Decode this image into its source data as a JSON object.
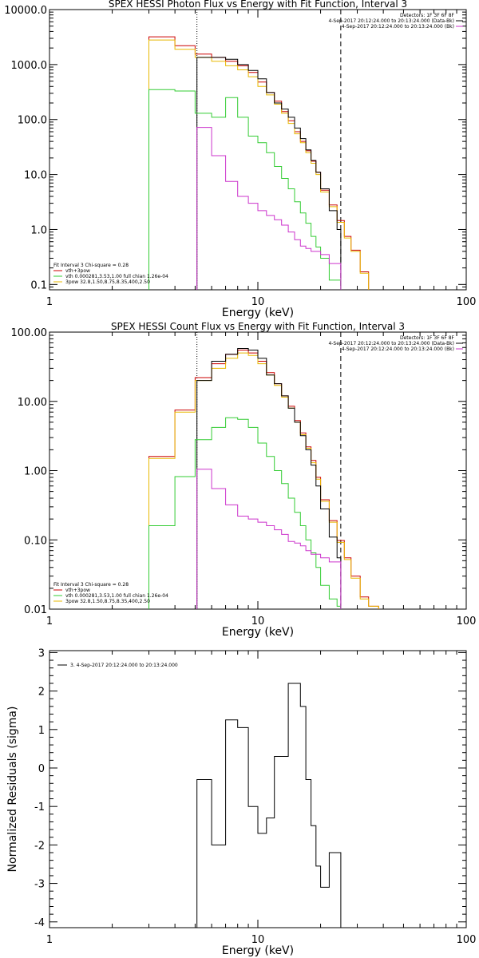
{
  "chart_data": [
    {
      "type": "line",
      "title": "SPEX HESSI Photon Flux vs Energy with Fit Function, Interval 3",
      "xlabel": "Energy (keV)",
      "ylabel": "",
      "xscale": "log",
      "yscale": "log",
      "xlim": [
        1,
        100
      ],
      "ylim": [
        0.08,
        10000
      ],
      "x_ticks": [
        "1",
        "10",
        "100"
      ],
      "y_ticks": [
        "0.1",
        "1.0",
        "10.0",
        "100.0",
        "1000.0",
        "10000.0"
      ],
      "vlines": [
        {
          "x": 5.1,
          "style": "dotted",
          "color": "#000000"
        },
        {
          "x": 25,
          "style": "dashed",
          "color": "#000000"
        }
      ],
      "legend_top": [
        {
          "text": "Detectors: 1F 3F 6F 8F",
          "color": ""
        },
        {
          "text": "4-Sep-2017 20:12:24.000 to 20:13:24.000 (Data-Bk)",
          "color": "#000000"
        },
        {
          "text": "4-Sep-2017 20:12:24.000 to 20:13:24.000 (Bk)",
          "color": "#cc33cc"
        }
      ],
      "legend_bottom": [
        {
          "text": "Fit Interval 3   Chi-square = 0.28",
          "color": ""
        },
        {
          "text": "vth+3pow",
          "color": "#cc0000"
        },
        {
          "text": "vth 0.000281,3.53,1.00   full chian 1.26e-04",
          "color": "#33cc33"
        },
        {
          "text": "3pow 32.8,1.50,8.75,8.35,400,2.50",
          "color": "#e8b800"
        }
      ],
      "series": [
        {
          "color": "#cc0000",
          "edges": [
            3.0,
            4.0,
            5.0,
            6.0,
            7.0,
            8.0,
            9.0,
            10.0,
            11.0,
            12.0,
            13.0,
            14.0,
            15.0,
            16.0,
            17.0,
            18.0,
            19.0,
            20.0,
            22.0,
            24.0,
            26.0,
            28.0,
            31.0,
            34.0
          ],
          "values": [
            3200,
            2200,
            1550,
            1350,
            1150,
            950,
            720,
            480,
            310,
            215,
            140,
            95,
            60,
            40,
            27,
            17.5,
            11,
            5.2,
            2.8,
            1.45,
            0.75,
            0.42,
            0.17
          ]
        },
        {
          "color": "#e8b800",
          "edges": [
            3.0,
            4.0,
            5.0,
            6.0,
            7.0,
            8.0,
            9.0,
            10.0,
            11.0,
            12.0,
            13.0,
            14.0,
            15.0,
            16.0,
            17.0,
            18.0,
            19.0,
            20.0,
            22.0,
            24.0,
            26.0,
            28.0,
            31.0,
            34.0
          ],
          "values": [
            2800,
            1900,
            1350,
            1150,
            950,
            800,
            600,
            400,
            280,
            190,
            130,
            85,
            55,
            38,
            25,
            16,
            10,
            4.8,
            2.6,
            1.35,
            0.7,
            0.4,
            0.16
          ]
        },
        {
          "color": "#000000",
          "edges": [
            5.1,
            6.0,
            7.0,
            8.0,
            9.0,
            10.0,
            11.0,
            12.0,
            13.0,
            14.0,
            15.0,
            16.0,
            17.0,
            18.0,
            19.0,
            20.0,
            22.0,
            24.0,
            25.0
          ],
          "values": [
            1350,
            1350,
            1250,
            1000,
            780,
            550,
            310,
            200,
            155,
            110,
            70,
            45,
            28,
            18,
            11,
            5.5,
            2.2,
            1.0
          ]
        },
        {
          "color": "#33cc33",
          "edges": [
            3.0,
            4.0,
            5.0,
            6.0,
            7.0,
            8.0,
            9.0,
            10.0,
            11.0,
            12.0,
            13.0,
            14.0,
            15.0,
            16.0,
            17.0,
            18.0,
            19.0,
            20.0,
            22.0,
            25.0
          ],
          "values": [
            350,
            330,
            130,
            110,
            250,
            110,
            50,
            38,
            25,
            14,
            8.5,
            5.5,
            3.2,
            2.0,
            1.3,
            0.75,
            0.48,
            0.3,
            0.12
          ]
        },
        {
          "color": "#cc33cc",
          "edges": [
            5.1,
            6.0,
            7.0,
            8.0,
            9.0,
            10.0,
            11.0,
            12.0,
            13.0,
            14.0,
            15.0,
            16.0,
            17.0,
            18.0,
            20.0,
            22.0,
            25.0
          ],
          "values": [
            72,
            22,
            7.5,
            4.0,
            3.0,
            2.2,
            1.8,
            1.5,
            1.2,
            0.9,
            0.65,
            0.5,
            0.45,
            0.4,
            0.35,
            0.24
          ]
        }
      ]
    },
    {
      "type": "line",
      "title": "SPEX HESSI Count Flux vs Energy with Fit Function, Interval 3",
      "xlabel": "Energy (keV)",
      "ylabel": "",
      "xscale": "log",
      "yscale": "log",
      "xlim": [
        1,
        100
      ],
      "ylim": [
        0.01,
        100
      ],
      "x_ticks": [
        "1",
        "10",
        "100"
      ],
      "y_ticks": [
        "0.01",
        "0.10",
        "1.00",
        "10.00",
        "100.00"
      ],
      "vlines": [
        {
          "x": 5.1,
          "style": "dotted",
          "color": "#000000"
        },
        {
          "x": 25,
          "style": "dashed",
          "color": "#000000"
        }
      ],
      "legend_top": [
        {
          "text": "Detectors: 1F 3F 6F 8F",
          "color": ""
        },
        {
          "text": "4-Sep-2017 20:12:24.000 to 20:13:24.000 (Data-Bk)",
          "color": "#000000"
        },
        {
          "text": "4-Sep-2017 20:12:24.000 to 20:13:24.000 (Bk)",
          "color": "#cc33cc"
        }
      ],
      "legend_bottom": [
        {
          "text": "Fit Interval 3   Chi-square = 0.28",
          "color": ""
        },
        {
          "text": "vth+3pow",
          "color": "#cc0000"
        },
        {
          "text": "vth 0.000281,3.53,1.00   full chian 1.26e-04",
          "color": "#33cc33"
        },
        {
          "text": "3pow 32.8,1.50,8.75,8.35,400,2.50",
          "color": "#e8b800"
        }
      ],
      "series": [
        {
          "color": "#cc0000",
          "edges": [
            3.0,
            4.0,
            5.0,
            6.0,
            7.0,
            8.0,
            9.0,
            10.0,
            11.0,
            12.0,
            13.0,
            14.0,
            15.0,
            16.0,
            17.0,
            18.0,
            19.0,
            20.0,
            22.0,
            24.0,
            26.0,
            28.0,
            31.0,
            34.0,
            38.0
          ],
          "values": [
            1.6,
            7.5,
            22,
            35,
            48,
            55,
            50,
            38,
            26,
            18,
            12,
            8.5,
            5.3,
            3.5,
            2.2,
            1.4,
            0.8,
            0.38,
            0.19,
            0.098,
            0.055,
            0.03,
            0.015,
            0.011
          ]
        },
        {
          "color": "#e8b800",
          "edges": [
            3.0,
            4.0,
            5.0,
            6.0,
            7.0,
            8.0,
            9.0,
            10.0,
            11.0,
            12.0,
            13.0,
            14.0,
            15.0,
            16.0,
            17.0,
            18.0,
            19.0,
            20.0,
            22.0,
            24.0,
            26.0,
            28.0,
            31.0,
            34.0,
            38.0
          ],
          "values": [
            1.5,
            7.0,
            20,
            30,
            42,
            50,
            46,
            35,
            24,
            17,
            11.5,
            8.0,
            5.0,
            3.3,
            2.1,
            1.3,
            0.75,
            0.36,
            0.18,
            0.092,
            0.052,
            0.028,
            0.014,
            0.011
          ]
        },
        {
          "color": "#000000",
          "edges": [
            5.1,
            6.0,
            7.0,
            8.0,
            9.0,
            10.0,
            11.0,
            12.0,
            13.0,
            14.0,
            15.0,
            16.0,
            17.0,
            18.0,
            19.0,
            20.0,
            22.0,
            24.0,
            25.0
          ],
          "values": [
            20,
            38,
            48,
            58,
            55,
            42,
            24,
            18,
            12,
            8.0,
            5.0,
            3.2,
            2.0,
            1.2,
            0.6,
            0.28,
            0.11,
            0.055
          ]
        },
        {
          "color": "#33cc33",
          "edges": [
            3.0,
            4.0,
            5.0,
            6.0,
            7.0,
            8.0,
            9.0,
            10.0,
            11.0,
            12.0,
            13.0,
            14.0,
            15.0,
            16.0,
            17.0,
            18.0,
            19.0,
            20.0,
            22.0,
            24.0,
            25.0
          ],
          "values": [
            0.16,
            0.82,
            2.8,
            4.2,
            5.8,
            5.5,
            4.2,
            2.5,
            1.6,
            1.0,
            0.65,
            0.4,
            0.25,
            0.16,
            0.1,
            0.065,
            0.04,
            0.022,
            0.014,
            0.011
          ]
        },
        {
          "color": "#cc33cc",
          "edges": [
            5.1,
            6.0,
            7.0,
            8.0,
            9.0,
            10.0,
            11.0,
            12.0,
            13.0,
            14.0,
            15.0,
            16.0,
            17.0,
            18.0,
            20.0,
            22.0,
            25.0
          ],
          "values": [
            1.05,
            0.55,
            0.32,
            0.22,
            0.2,
            0.18,
            0.16,
            0.14,
            0.12,
            0.095,
            0.09,
            0.082,
            0.07,
            0.062,
            0.055,
            0.048
          ]
        }
      ]
    },
    {
      "type": "line",
      "title": "",
      "xlabel": "Energy (keV)",
      "ylabel": "Normalized Residuals (sigma)",
      "xscale": "log",
      "yscale": "linear",
      "xlim": [
        1,
        100
      ],
      "ylim": [
        -4.15,
        3.05
      ],
      "x_ticks": [
        "1",
        "10",
        "100"
      ],
      "y_ticks": [
        "-4",
        "-3",
        "-2",
        "-1",
        "0",
        "1",
        "2",
        "3"
      ],
      "legend": [
        {
          "text": "3.  4-Sep-2017 20:12:24.000 to 20:13:24.000",
          "color": "#000000"
        }
      ],
      "series": [
        {
          "color": "#000000",
          "edges": [
            5.1,
            6.0,
            7.0,
            8.0,
            9.0,
            10.0,
            11.0,
            12.0,
            13.0,
            14.0,
            15.0,
            16.0,
            17.0,
            18.0,
            19.0,
            20.0,
            22.0,
            24.0,
            25.0
          ],
          "values": [
            -0.3,
            -2.0,
            1.25,
            1.05,
            -1.0,
            -1.7,
            -1.3,
            0.3,
            0.3,
            2.2,
            2.2,
            1.6,
            -0.3,
            -1.5,
            -2.55,
            -3.1,
            -2.2,
            -2.2
          ]
        }
      ]
    }
  ]
}
